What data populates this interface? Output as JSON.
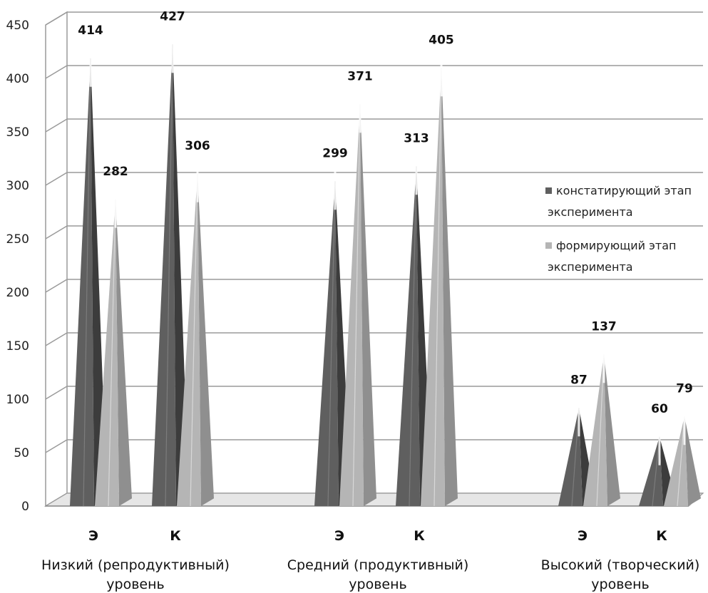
{
  "chart_data": {
    "type": "bar",
    "groups": [
      {
        "label_line1": "Низкий (репродуктивный)",
        "label_line2": "уровень"
      },
      {
        "label_line1": "Средний (продуктивный)",
        "label_line2": "уровень"
      },
      {
        "label_line1": "Высокий (творческий)",
        "label_line2": "уровень"
      }
    ],
    "categories": [
      "Э",
      "К",
      "Э",
      "К",
      "Э",
      "К"
    ],
    "series": [
      {
        "name": "констатирующий этап эксперимента",
        "color": "#5f5f5f",
        "values": [
          414,
          427,
          299,
          313,
          87,
          60
        ]
      },
      {
        "name": "формирующий этап эксперимента",
        "color": "#b5b5b5",
        "values": [
          282,
          306,
          371,
          405,
          137,
          79
        ]
      }
    ],
    "yticks": [
      "0",
      "50",
      "100",
      "150",
      "200",
      "250",
      "300",
      "350",
      "400",
      "450"
    ],
    "ylim": [
      0,
      450
    ],
    "grid": true,
    "legend_position": "right",
    "legend": [
      {
        "line1": "констатирующий этап",
        "line2": "эксперимента"
      },
      {
        "line1": "формирующий этап",
        "line2": "эксперимента"
      }
    ]
  }
}
